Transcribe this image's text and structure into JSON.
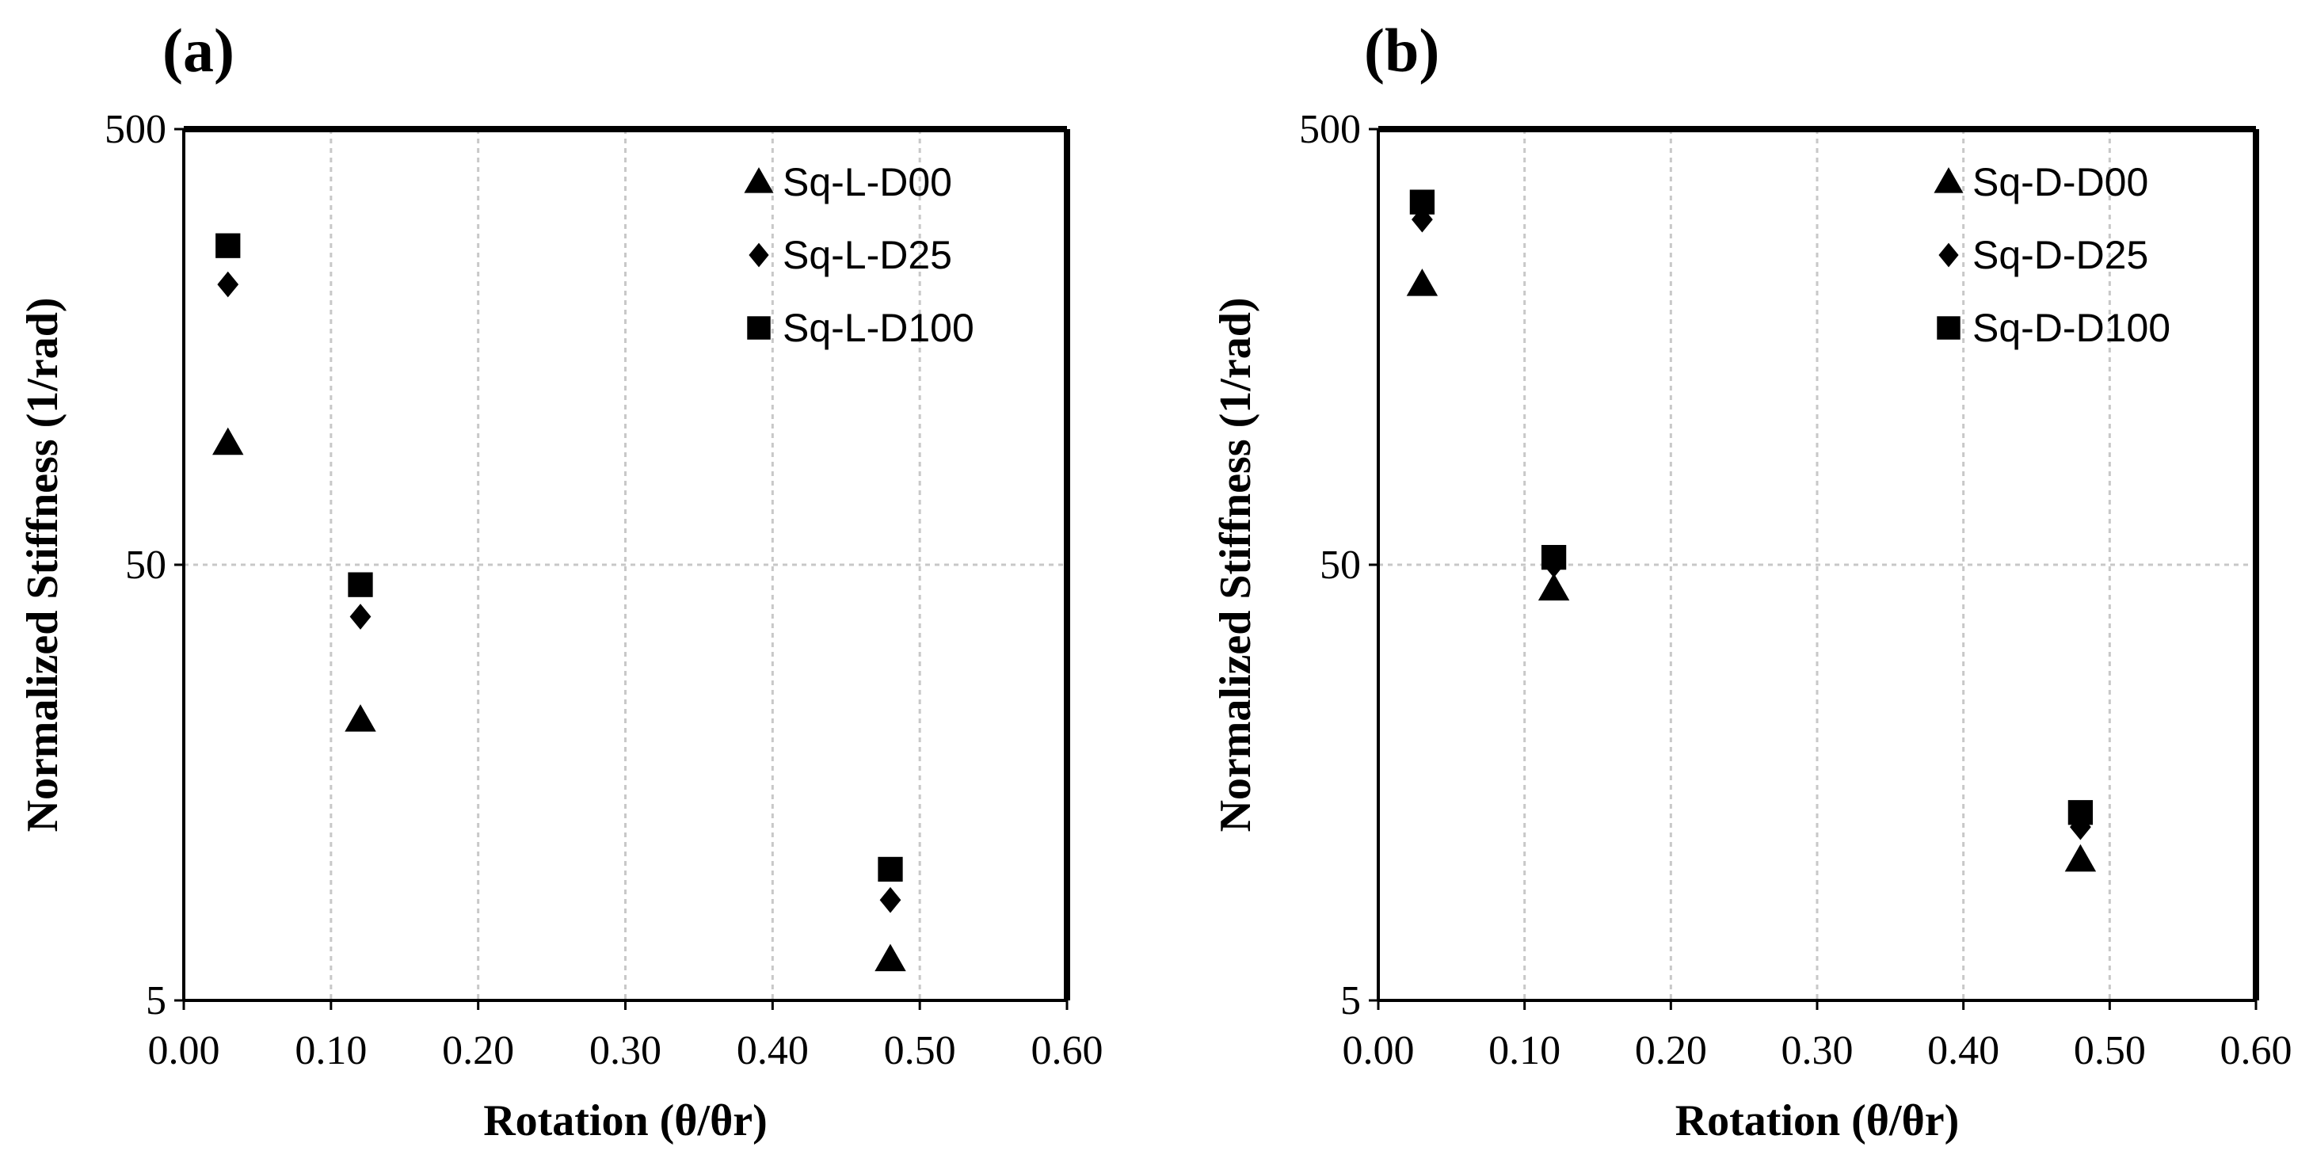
{
  "chart_data": [
    {
      "type": "scatter",
      "panel_label": "(a)",
      "xlabel": "Rotation (θ/θr)",
      "ylabel": "Normalized Stiffness (1/rad)",
      "yscale": "log",
      "xlim": [
        0,
        0.6
      ],
      "ylim": [
        5,
        500
      ],
      "x_ticks": [
        0,
        0.1,
        0.2,
        0.3,
        0.4,
        0.5,
        0.6
      ],
      "x_tick_labels": [
        "0.00",
        "0.10",
        "0.20",
        "0.30",
        "0.40",
        "0.50",
        "0.60"
      ],
      "y_ticks": [
        5,
        50,
        500
      ],
      "y_tick_labels": [
        "5",
        "50",
        "500"
      ],
      "grid": true,
      "legend_position": "top-right",
      "series": [
        {
          "name": "Sq-L-D00",
          "marker": "triangle",
          "x": [
            0.03,
            0.12,
            0.48
          ],
          "y": [
            95,
            22,
            6.2
          ]
        },
        {
          "name": "Sq-L-D25",
          "marker": "diamond",
          "x": [
            0.03,
            0.12,
            0.48
          ],
          "y": [
            220,
            38,
            8.5
          ]
        },
        {
          "name": "Sq-L-D100",
          "marker": "square",
          "x": [
            0.03,
            0.12,
            0.48
          ],
          "y": [
            270,
            45,
            10
          ]
        }
      ]
    },
    {
      "type": "scatter",
      "panel_label": "(b)",
      "xlabel": "Rotation (θ/θr)",
      "ylabel": "Normalized Stiffness (1/rad)",
      "yscale": "log",
      "xlim": [
        0,
        0.6
      ],
      "ylim": [
        5,
        500
      ],
      "x_ticks": [
        0,
        0.1,
        0.2,
        0.3,
        0.4,
        0.5,
        0.6
      ],
      "x_tick_labels": [
        "0.00",
        "0.10",
        "0.20",
        "0.30",
        "0.40",
        "0.50",
        "0.60"
      ],
      "y_ticks": [
        5,
        50,
        500
      ],
      "y_tick_labels": [
        "5",
        "50",
        "500"
      ],
      "grid": true,
      "legend_position": "top-right",
      "series": [
        {
          "name": "Sq-D-D00",
          "marker": "triangle",
          "x": [
            0.03,
            0.12,
            0.48
          ],
          "y": [
            220,
            44,
            10.5
          ]
        },
        {
          "name": "Sq-D-D25",
          "marker": "diamond",
          "x": [
            0.03,
            0.12,
            0.48
          ],
          "y": [
            310,
            50,
            12.5
          ]
        },
        {
          "name": "Sq-D-D100",
          "marker": "square",
          "x": [
            0.03,
            0.12,
            0.48
          ],
          "y": [
            340,
            52,
            13.5
          ]
        }
      ]
    }
  ]
}
